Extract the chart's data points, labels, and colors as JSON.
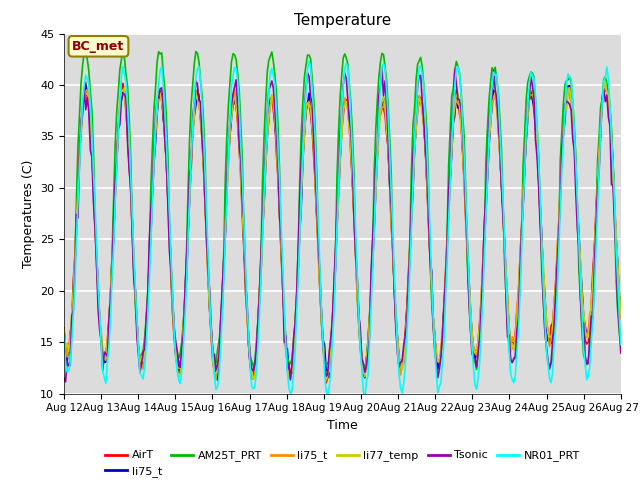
{
  "title": "Temperature",
  "xlabel": "Time",
  "ylabel": "Temperatures (C)",
  "ylim": [
    10,
    45
  ],
  "yticks": [
    10,
    15,
    20,
    25,
    30,
    35,
    40,
    45
  ],
  "xtick_labels": [
    "Aug 12",
    "Aug 13",
    "Aug 14",
    "Aug 15",
    "Aug 16",
    "Aug 17",
    "Aug 18",
    "Aug 19",
    "Aug 20",
    "Aug 21",
    "Aug 22",
    "Aug 23",
    "Aug 24",
    "Aug 25",
    "Aug 26",
    "Aug 27"
  ],
  "annotation_text": "BC_met",
  "annotation_color": "#8B0000",
  "annotation_bg": "#FFFACD",
  "annotation_border": "#8B8000",
  "series": [
    {
      "name": "AirT",
      "color": "#FF0000",
      "lw": 1.2
    },
    {
      "name": "li75_t",
      "color": "#0000CC",
      "lw": 1.2
    },
    {
      "name": "AM25T_PRT",
      "color": "#00BB00",
      "lw": 1.2
    },
    {
      "name": "li75_t",
      "color": "#FF8C00",
      "lw": 1.2
    },
    {
      "name": "li77_temp",
      "color": "#CCCC00",
      "lw": 1.2
    },
    {
      "name": "Tsonic",
      "color": "#9900AA",
      "lw": 1.2
    },
    {
      "name": "NR01_PRT",
      "color": "#00FFFF",
      "lw": 1.2
    }
  ],
  "bg_color": "#DCDCDC",
  "fig_bg": "#FFFFFF",
  "grid_color": "#FFFFFF",
  "grid_lw": 1.2,
  "n_days": 15,
  "hours_per_day": 24
}
